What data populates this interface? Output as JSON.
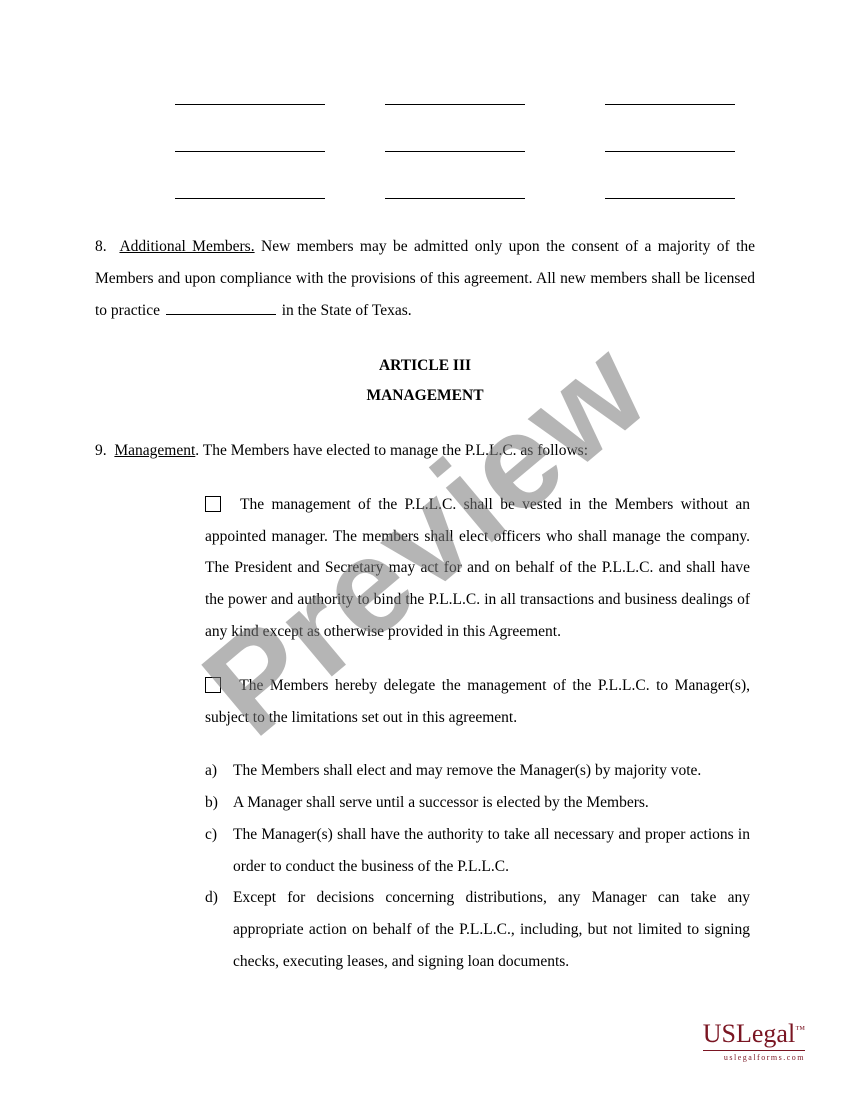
{
  "section8": {
    "number": "8.",
    "heading": "Additional Members.",
    "text1": "  New members may be admitted only upon the consent of a majority of the Members and upon compliance with the provisions of this agreement.  All new members shall be licensed to practice ",
    "text2": " in the State of Texas."
  },
  "article": {
    "line1": "ARTICLE III",
    "line2": "MANAGEMENT"
  },
  "section9": {
    "number": "9.",
    "heading": "Management",
    "intro": ".  The Members have elected to manage the P.L.L.C. as follows:",
    "optionA": "  The management of the P.L.L.C. shall be vested in the Members without an appointed manager. The members shall elect officers who shall manage the company.  The President and Secretary may act for and on behalf of the P.L.L.C. and shall have the power and authority to bind the P.L.L.C. in all transactions and business dealings of any kind except as otherwise provided in this Agreement.",
    "optionB": "  The Members hereby delegate the management of the P.L.L.C. to Manager(s), subject to the limitations set out in this agreement.",
    "items": [
      {
        "letter": "a)",
        "text": "The Members shall elect and may remove the Manager(s) by majority vote."
      },
      {
        "letter": "b)",
        "text": "A Manager shall serve until a successor is elected by the Members."
      },
      {
        "letter": "c)",
        "text": "The Manager(s) shall have the authority to take all necessary and proper actions in order to conduct the business of the P.L.L.C."
      },
      {
        "letter": "d)",
        "text": "Except for decisions concerning distributions, any Manager can take any appropriate action on behalf of the P.L.L.C., including, but not limited to signing checks, executing leases, and signing loan documents."
      }
    ]
  },
  "watermark": "Preview",
  "logo": {
    "main": "USLegal",
    "tm": "™",
    "sub": "uslegalforms.com"
  }
}
